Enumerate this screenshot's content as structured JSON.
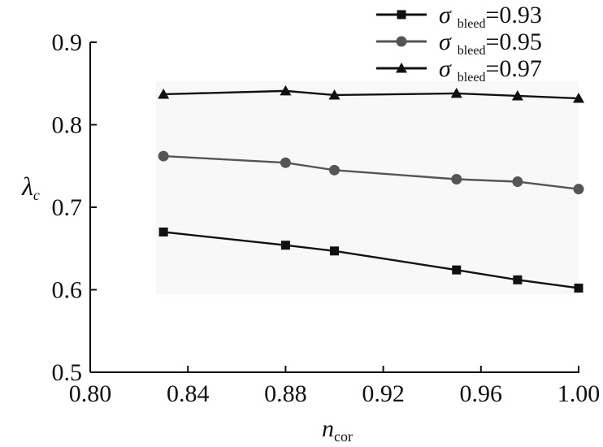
{
  "chart_data": {
    "type": "line",
    "xlabel": {
      "main": "n",
      "sub": "cor"
    },
    "ylabel": {
      "main": "λ",
      "sub": "c"
    },
    "xlim": [
      0.8,
      1.0
    ],
    "ylim": [
      0.5,
      0.9
    ],
    "x_ticks": [
      "0.80",
      "0.84",
      "0.88",
      "0.92",
      "0.96",
      "1.00"
    ],
    "y_ticks": [
      "0.5",
      "0.6",
      "0.7",
      "0.8",
      "0.9"
    ],
    "x": [
      0.83,
      0.88,
      0.9,
      0.95,
      0.975,
      1.0
    ],
    "legend_position": "top-right",
    "grid": false,
    "series": [
      {
        "name": "σ bleed=0.93",
        "legend": {
          "symbol": "σ",
          "sub": "bleed",
          "value": "=0.93"
        },
        "marker": "square",
        "color": "#111111",
        "values": [
          0.67,
          0.654,
          0.647,
          0.624,
          0.612,
          0.602
        ]
      },
      {
        "name": "σ bleed=0.95",
        "legend": {
          "symbol": "σ",
          "sub": "bleed",
          "value": "=0.95"
        },
        "marker": "circle",
        "color": "#555555",
        "values": [
          0.762,
          0.754,
          0.745,
          0.734,
          0.731,
          0.722
        ]
      },
      {
        "name": "σ bleed=0.97",
        "legend": {
          "symbol": "σ",
          "sub": "bleed",
          "value": "=0.97"
        },
        "marker": "triangle",
        "color": "#111111",
        "values": [
          0.837,
          0.841,
          0.836,
          0.838,
          0.835,
          0.832
        ]
      }
    ]
  }
}
